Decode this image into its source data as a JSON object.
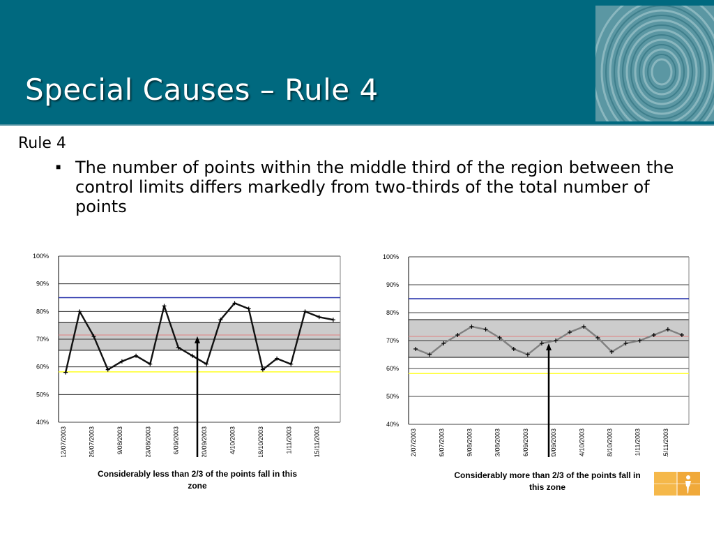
{
  "header": {
    "title": "Special Causes – Rule 4"
  },
  "body": {
    "rule_heading": "Rule 4",
    "bullet_text": "The number of points within the middle third of the region between the control limits differs markedly from two-thirds of the total number of points"
  },
  "chart_data": [
    {
      "type": "line",
      "title": "",
      "ylim": [
        40,
        100
      ],
      "y_ticks": [
        "100%",
        "90%",
        "80%",
        "70%",
        "60%",
        "50%",
        "40%"
      ],
      "x_tick_labels": [
        "12/07/2003",
        "26/07/2003",
        "9/08/2003",
        "23/08/2003",
        "6/09/2003",
        "20/09/2003",
        "4/10/2003",
        "18/10/2003",
        "1/11/2003",
        "15/11/2003"
      ],
      "upper_limit": 85,
      "center_line": 71.5,
      "lower_limit": 58.2,
      "zone": [
        66,
        76
      ],
      "series": [
        {
          "values": [
            58,
            80,
            71,
            59,
            62,
            64,
            61,
            82,
            67,
            64,
            61,
            77,
            83,
            81,
            59,
            63,
            61,
            80,
            78,
            77
          ]
        }
      ],
      "grid": true,
      "caption": "Considerably less than 2/3 of the points fall in this zone"
    },
    {
      "type": "line",
      "title": "",
      "ylim": [
        40,
        100
      ],
      "y_ticks": [
        "100%",
        "90%",
        "80%",
        "70%",
        "60%",
        "50%",
        "40%"
      ],
      "x_tick_labels": [
        "12/07/2003",
        "26/07/2003",
        "9/08/2003",
        "23/08/2003",
        "6/09/2003",
        "20/09/2003",
        "4/10/2003",
        "18/10/2003",
        "1/11/2003",
        "15/11/2003"
      ],
      "upper_limit": 85,
      "center_line": 71.5,
      "lower_limit": 58.2,
      "zone": [
        64,
        77.5
      ],
      "series": [
        {
          "values": [
            67,
            65,
            69,
            72,
            75,
            74,
            71,
            67,
            65,
            69,
            70,
            73,
            75,
            71,
            66,
            69,
            70,
            72,
            74,
            72
          ]
        }
      ],
      "grid": true,
      "caption": "Considerably more than 2/3 of the points fall in this zone"
    }
  ],
  "colors": {
    "header_bg": "#00697f",
    "upper_limit": "#1f2aa8",
    "center_line": "#e08080",
    "lower_limit": "#ffff33",
    "zone_fill": "#cccccc",
    "corner_logo": "#f5b84a"
  },
  "icons": {
    "header_logo": "fingerprint-icon",
    "corner_logo": "person-icon"
  }
}
